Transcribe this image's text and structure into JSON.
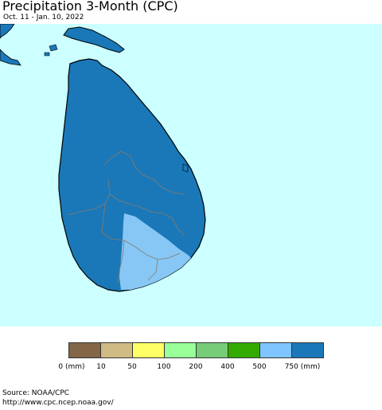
{
  "header": {
    "title": "Precipitation 3-Month (CPC)",
    "subtitle": "Oct. 11 - Jan. 10, 2022"
  },
  "map": {
    "ocean_color": "#ccffff",
    "land_color_main": "#1a78b8",
    "land_color_low": "#86c7f5",
    "boundary_color": "#8a7a6a",
    "coastline_color": "#000000"
  },
  "legend": {
    "colors": [
      "#826646",
      "#d0bb84",
      "#ffff66",
      "#99ff99",
      "#77cc77",
      "#33aa00",
      "#7fc5ff",
      "#1a78b8"
    ],
    "labels": [
      "0 (mm)",
      "10",
      "50",
      "100",
      "200",
      "400",
      "500",
      "750 (mm)"
    ]
  },
  "footer": {
    "source": "Source: NOAA/CPC",
    "url": "http://www.cpc.ncep.noaa.gov/"
  }
}
